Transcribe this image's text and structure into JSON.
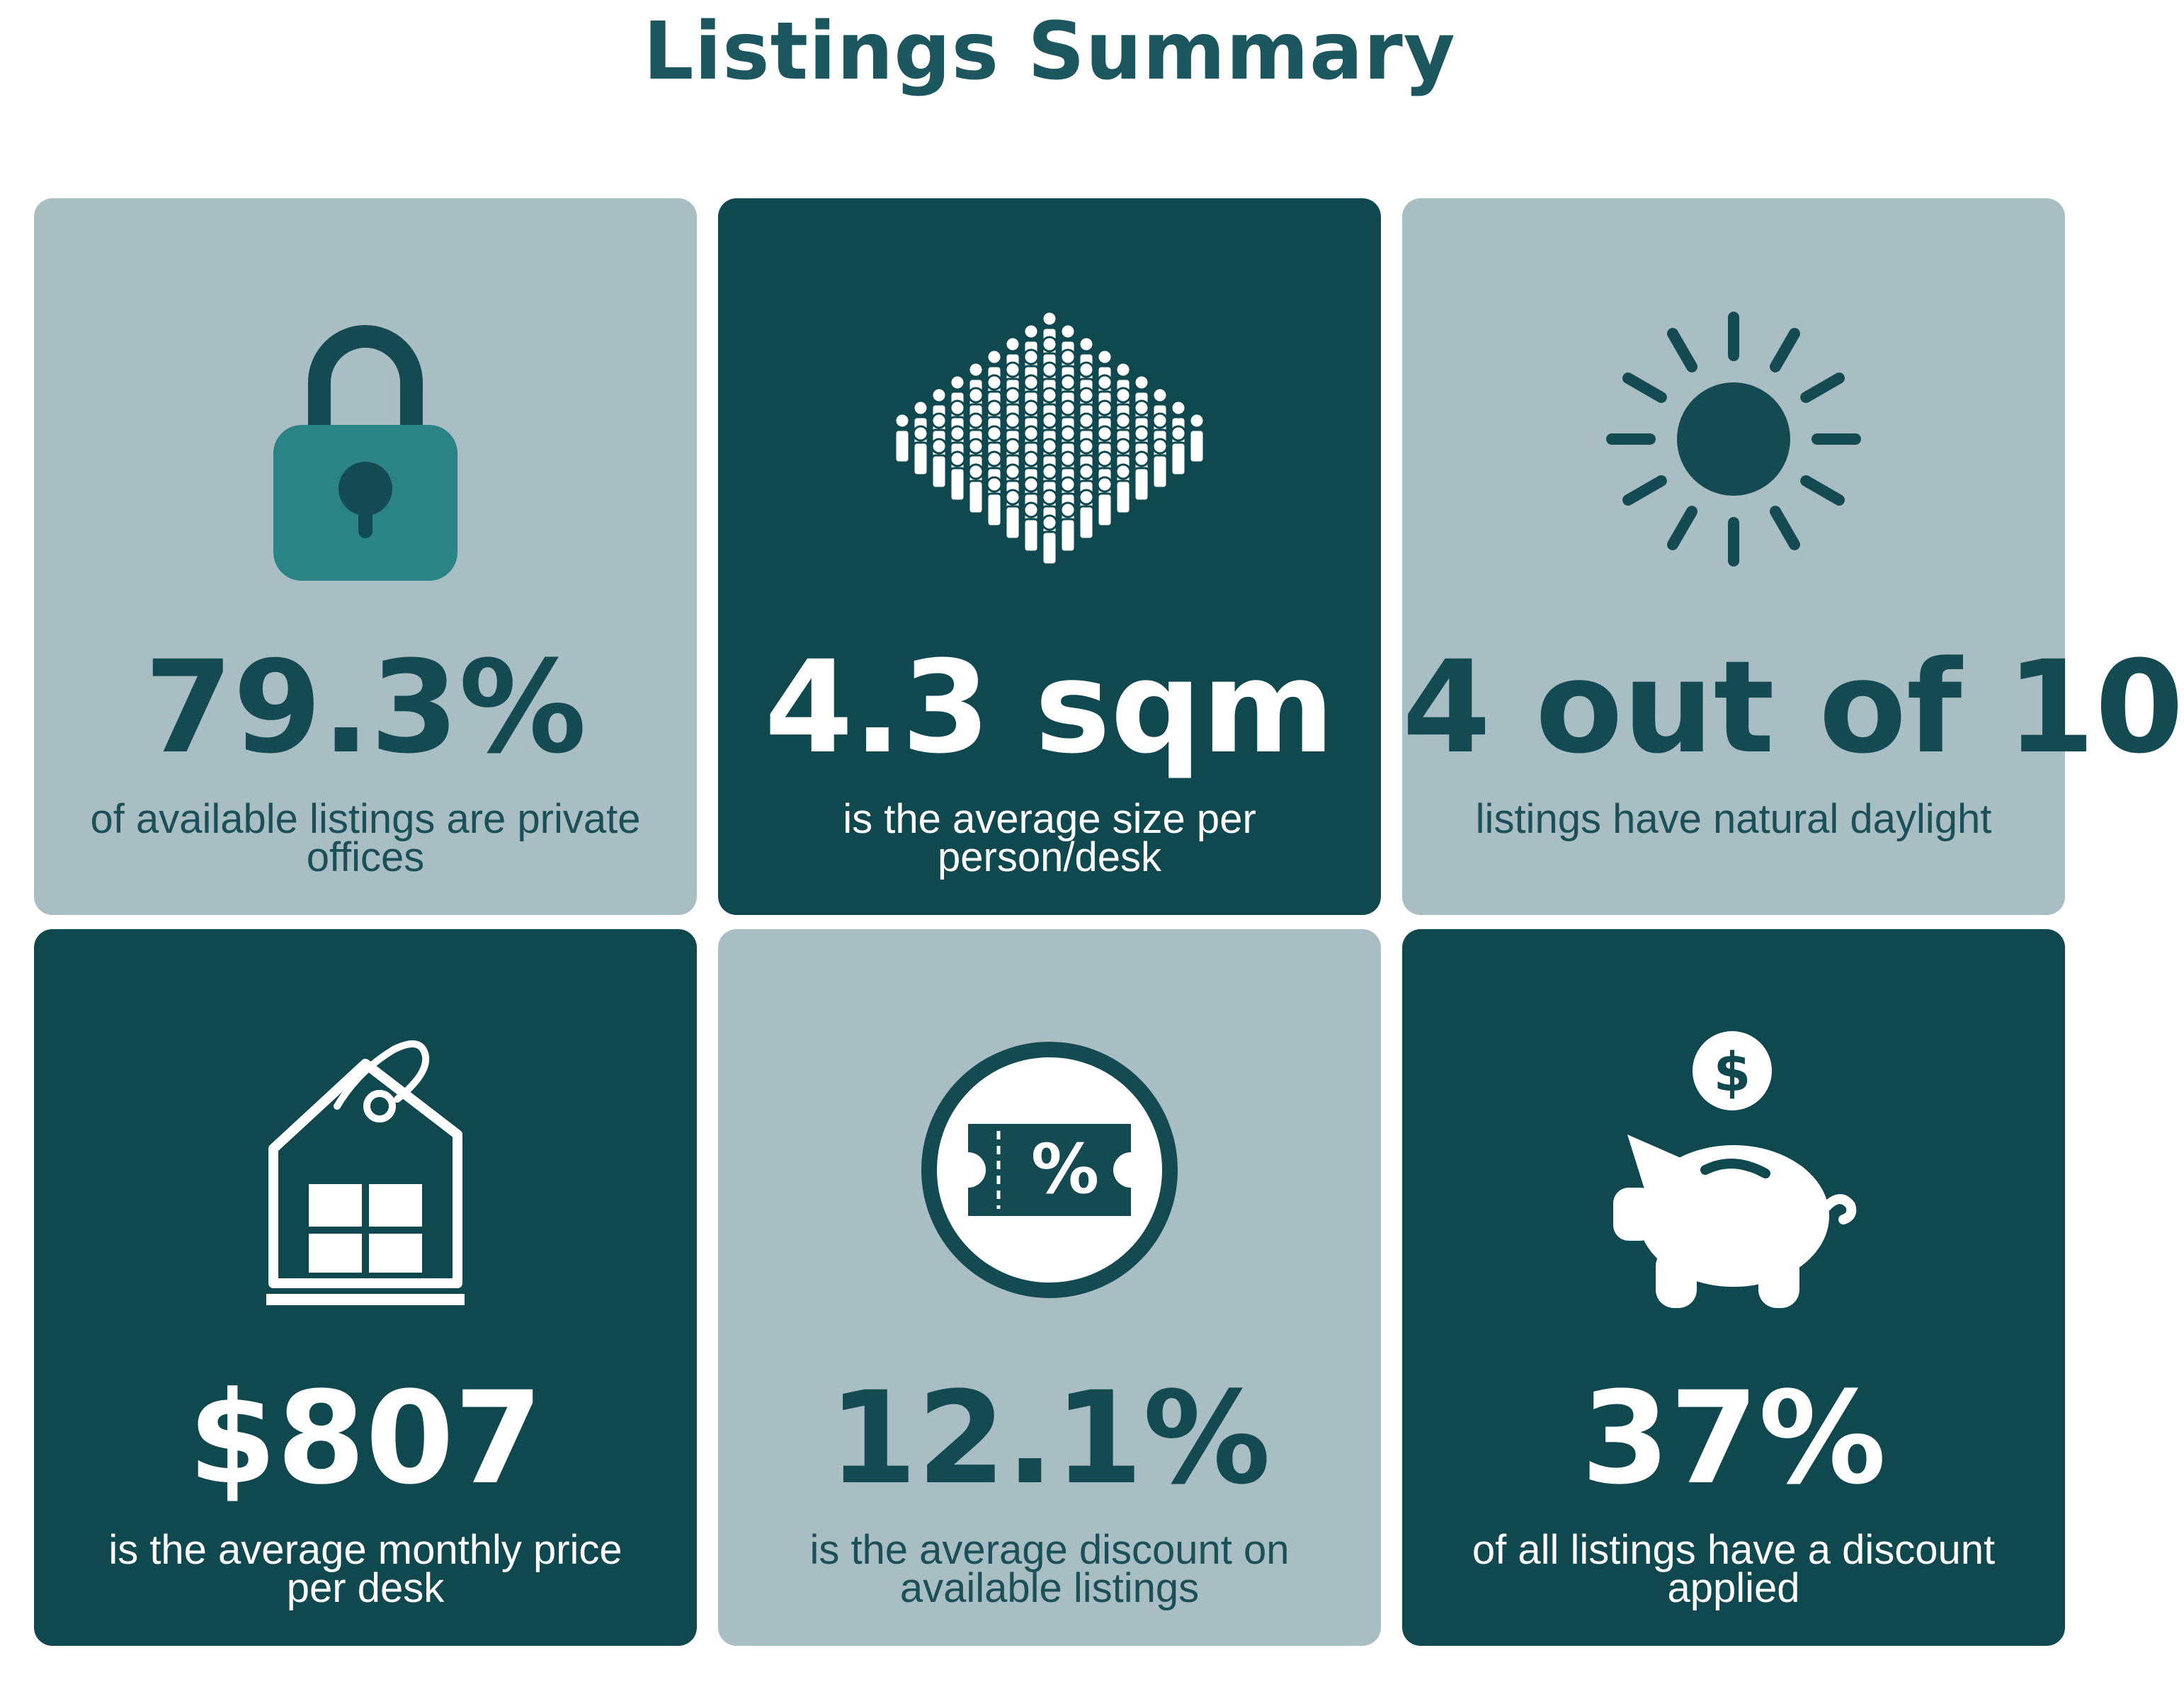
{
  "title": "Listings Summary",
  "colors": {
    "light_card": "#a9bec2",
    "dark_card": "#104850",
    "accent_teal": "#2a8384"
  },
  "cards": [
    {
      "icon": "padlock-icon",
      "value": "79.3%",
      "description": "of available listings are private offices"
    },
    {
      "icon": "crowd-icon",
      "value": "4.3 sqm",
      "description": "is the average size per person/desk"
    },
    {
      "icon": "sun-icon",
      "value": "4 out of 10",
      "description": "listings have natural daylight"
    },
    {
      "icon": "house-price-tag-icon",
      "value": "$807",
      "description": "is the average monthly price per desk"
    },
    {
      "icon": "discount-ticket-icon",
      "value": "12.1%",
      "description": "is the average discount on available listings"
    },
    {
      "icon": "piggy-bank-icon",
      "value": "37%",
      "description": "of all listings have a discount applied"
    }
  ]
}
